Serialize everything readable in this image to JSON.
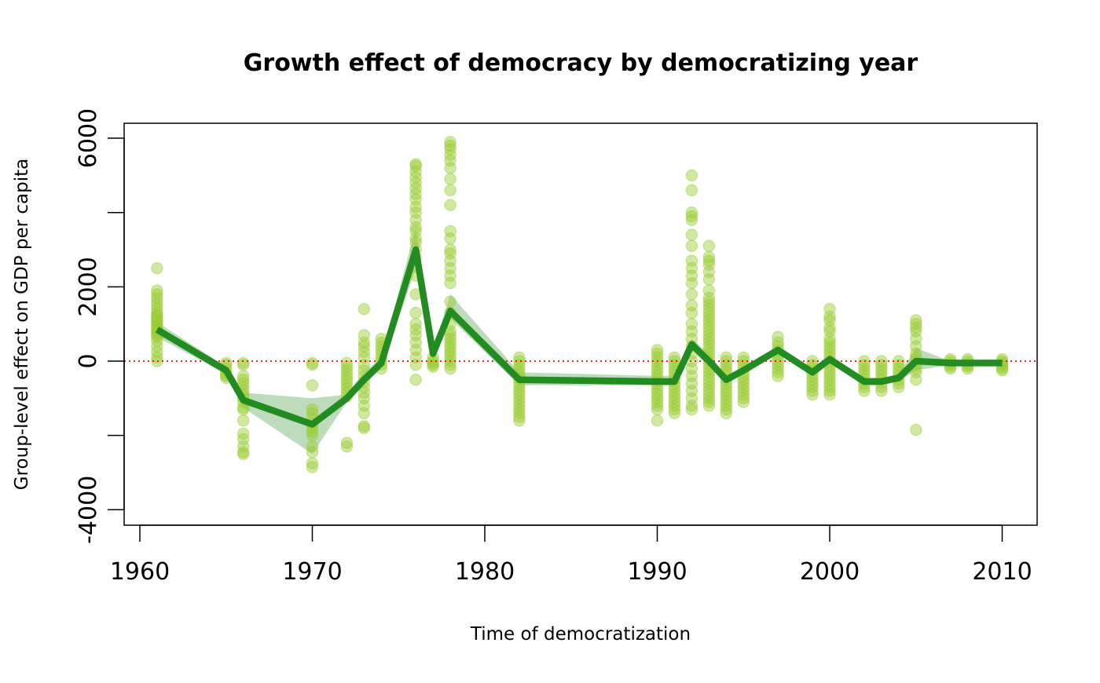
{
  "chart_data": {
    "type": "line",
    "title": "Growth effect of democracy by democratizing year",
    "xlabel": "Time of democratization",
    "ylabel": "Group-level effect on GDP per capita",
    "xlim": [
      1960,
      2012
    ],
    "ylim": [
      -4000,
      6000
    ],
    "x_ticks": [
      1960,
      1970,
      1980,
      1990,
      2000,
      2010
    ],
    "x_tick_labels": [
      "1960",
      "1970",
      "1980",
      "1990",
      "2000",
      "2010"
    ],
    "y_ticks": [
      -4000,
      -2000,
      0,
      2000,
      4000,
      6000
    ],
    "y_tick_labels": [
      "-4000",
      "",
      "0",
      "2000",
      "",
      "6000"
    ],
    "reference_line": {
      "y": 0,
      "style": "dotted",
      "color": "#ff0000"
    },
    "colors": {
      "points": "#9acd32",
      "line": "#228b22",
      "ribbon": "#228b22"
    },
    "grid": false,
    "mean_line": {
      "x": [
        1961,
        1965,
        1966,
        1970,
        1972,
        1973,
        1974,
        1976,
        1977,
        1978,
        1982,
        1990,
        1991,
        1992,
        1993,
        1994,
        1995,
        1997,
        1999,
        2000,
        2002,
        2003,
        2004,
        2005,
        2007,
        2008,
        2010
      ],
      "y": [
        850,
        -250,
        -1050,
        -1700,
        -1000,
        -500,
        -50,
        3000,
        200,
        1350,
        -500,
        -550,
        -550,
        450,
        0,
        -500,
        -250,
        300,
        -300,
        50,
        -550,
        -550,
        -450,
        0,
        -50,
        -50,
        -50
      ]
    },
    "ribbon": {
      "x": [
        1961,
        1965,
        1966,
        1970,
        1972,
        1973,
        1974,
        1976,
        1977,
        1978,
        1982,
        1990,
        1991,
        1992,
        1993,
        1994,
        1995,
        1997,
        1999,
        2000,
        2002,
        2003,
        2004,
        2005,
        2007,
        2008,
        2010
      ],
      "lower": [
        650,
        -350,
        -1250,
        -2500,
        -1100,
        -650,
        -200,
        2500,
        100,
        1150,
        -650,
        -650,
        -650,
        300,
        -150,
        -550,
        -350,
        200,
        -400,
        -50,
        -650,
        -650,
        -550,
        -250,
        -100,
        -100,
        -100
      ],
      "upper": [
        1050,
        -150,
        -850,
        -1000,
        -900,
        -300,
        100,
        3600,
        300,
        1800,
        -300,
        -400,
        -400,
        600,
        200,
        -400,
        -150,
        400,
        -200,
        150,
        -450,
        -450,
        -350,
        350,
        0,
        0,
        0
      ]
    },
    "points": [
      {
        "x": 1961,
        "y": [
          2500,
          1900,
          1800,
          1700,
          1600,
          1500,
          1400,
          1300,
          1250,
          1200,
          1150,
          1100,
          1050,
          1000,
          950,
          900,
          850,
          800,
          750,
          700,
          650,
          550,
          400,
          250,
          100,
          0
        ]
      },
      {
        "x": 1965,
        "y": [
          -50,
          -100,
          -200,
          -300,
          -350,
          -400,
          -450
        ]
      },
      {
        "x": 1966,
        "y": [
          -50,
          -100,
          -400,
          -500,
          -600,
          -700,
          -800,
          -900,
          -1000,
          -1100,
          -1250,
          -1300,
          -1600,
          -1950,
          -2100,
          -2300,
          -2450,
          -2500
        ]
      },
      {
        "x": 1970,
        "y": [
          -50,
          -100,
          -650,
          -1300,
          -1400,
          -1550,
          -1700,
          -1800,
          -1900,
          -2000,
          -2300,
          -2450,
          -2750,
          -2850
        ]
      },
      {
        "x": 1972,
        "y": [
          -50,
          -150,
          -250,
          -350,
          -450,
          -550,
          -650,
          -750,
          -850,
          -950,
          -2200,
          -2300
        ]
      },
      {
        "x": 1973,
        "y": [
          1400,
          700,
          500,
          400,
          250,
          100,
          -100,
          -250,
          -400,
          -550,
          -700,
          -850,
          -1000,
          -1200,
          -1400,
          -1800,
          -1750
        ]
      },
      {
        "x": 1974,
        "y": [
          600,
          500,
          400,
          300,
          200,
          100,
          0,
          -100,
          -200
        ]
      },
      {
        "x": 1976,
        "y": [
          5300,
          5250,
          5100,
          4950,
          4800,
          4650,
          4500,
          4350,
          4150,
          4000,
          3800,
          3600,
          3500,
          3300,
          3200,
          3000,
          2800,
          2550,
          2300,
          1800,
          1300,
          1000,
          850,
          700,
          500,
          300,
          100,
          -100,
          -500
        ]
      },
      {
        "x": 1977,
        "y": [
          100,
          0,
          -50,
          -100,
          -150
        ]
      },
      {
        "x": 1978,
        "y": [
          5900,
          5800,
          5700,
          5550,
          5400,
          5200,
          4900,
          4600,
          4200,
          3500,
          3300,
          3000,
          2900,
          2700,
          2500,
          2300,
          2100,
          1600,
          1300,
          1000,
          800,
          700,
          600,
          500,
          400,
          300,
          200,
          100,
          0,
          -100,
          -200
        ]
      },
      {
        "x": 1982,
        "y": [
          100,
          0,
          -100,
          -200,
          -300,
          -400,
          -500,
          -600,
          -700,
          -800,
          -900,
          -1000,
          -1100,
          -1200,
          -1300,
          -1400,
          -1500,
          -1600
        ]
      },
      {
        "x": 1990,
        "y": [
          300,
          200,
          100,
          0,
          -100,
          -200,
          -300,
          -400,
          -500,
          -600,
          -700,
          -800,
          -900,
          -1000,
          -1100,
          -1200,
          -1300,
          -1600
        ]
      },
      {
        "x": 1991,
        "y": [
          100,
          0,
          -100,
          -200,
          -300,
          -400,
          -500,
          -600,
          -700,
          -800,
          -900,
          -1000,
          -1100,
          -1200,
          -1300,
          -1400
        ]
      },
      {
        "x": 1992,
        "y": [
          5000,
          4600,
          4000,
          3900,
          3800,
          3400,
          3100,
          2700,
          2500,
          2300,
          2100,
          1800,
          1500,
          1300,
          1000,
          800,
          600,
          400,
          200,
          0,
          -200,
          -400,
          -600,
          -800,
          -1000,
          -1200,
          -1300
        ]
      },
      {
        "x": 1993,
        "y": [
          3100,
          2800,
          2700,
          2600,
          2400,
          2200,
          1900,
          1700,
          1600,
          1500,
          1400,
          1300,
          1200,
          1100,
          1000,
          900,
          800,
          700,
          600,
          500,
          400,
          300,
          200,
          100,
          0,
          -100,
          -200,
          -300,
          -400,
          -500,
          -600,
          -700,
          -800,
          -900,
          -1000,
          -1100,
          -1200
        ]
      },
      {
        "x": 1994,
        "y": [
          100,
          0,
          -100,
          -200,
          -300,
          -400,
          -500,
          -600,
          -700,
          -800,
          -900,
          -1000,
          -1100,
          -1200,
          -1300,
          -1400
        ]
      },
      {
        "x": 1995,
        "y": [
          100,
          0,
          -100,
          -200,
          -300,
          -400,
          -500,
          -600,
          -700,
          -800,
          -900,
          -1000,
          -1100
        ]
      },
      {
        "x": 1997,
        "y": [
          650,
          500,
          400,
          300,
          200,
          100,
          0,
          -100,
          -200,
          -300,
          -400
        ]
      },
      {
        "x": 1999,
        "y": [
          0,
          -100,
          -200,
          -300,
          -400,
          -500,
          -600,
          -700,
          -800,
          -900
        ]
      },
      {
        "x": 2000,
        "y": [
          1400,
          1200,
          1100,
          900,
          800,
          600,
          500,
          400,
          300,
          200,
          100,
          0,
          -100,
          -200,
          -300,
          -400,
          -500,
          -600,
          -700,
          -800,
          -900
        ]
      },
      {
        "x": 2002,
        "y": [
          0,
          -100,
          -200,
          -300,
          -400,
          -500,
          -600,
          -700,
          -800
        ]
      },
      {
        "x": 2003,
        "y": [
          0,
          -100,
          -200,
          -300,
          -400,
          -500,
          -600,
          -700,
          -800
        ]
      },
      {
        "x": 2004,
        "y": [
          0,
          -100,
          -200,
          -300,
          -400,
          -500,
          -600,
          -700
        ]
      },
      {
        "x": 2005,
        "y": [
          1100,
          1000,
          900,
          800,
          600,
          400,
          200,
          100,
          0,
          -100,
          -200,
          -300,
          -500,
          -1850
        ]
      },
      {
        "x": 2007,
        "y": [
          50,
          0,
          -50,
          -100,
          -150,
          -200
        ]
      },
      {
        "x": 2008,
        "y": [
          50,
          0,
          -50,
          -100,
          -150,
          -200
        ]
      },
      {
        "x": 2010,
        "y": [
          50,
          0,
          -50,
          -100,
          -150,
          -200,
          -250
        ]
      }
    ]
  }
}
